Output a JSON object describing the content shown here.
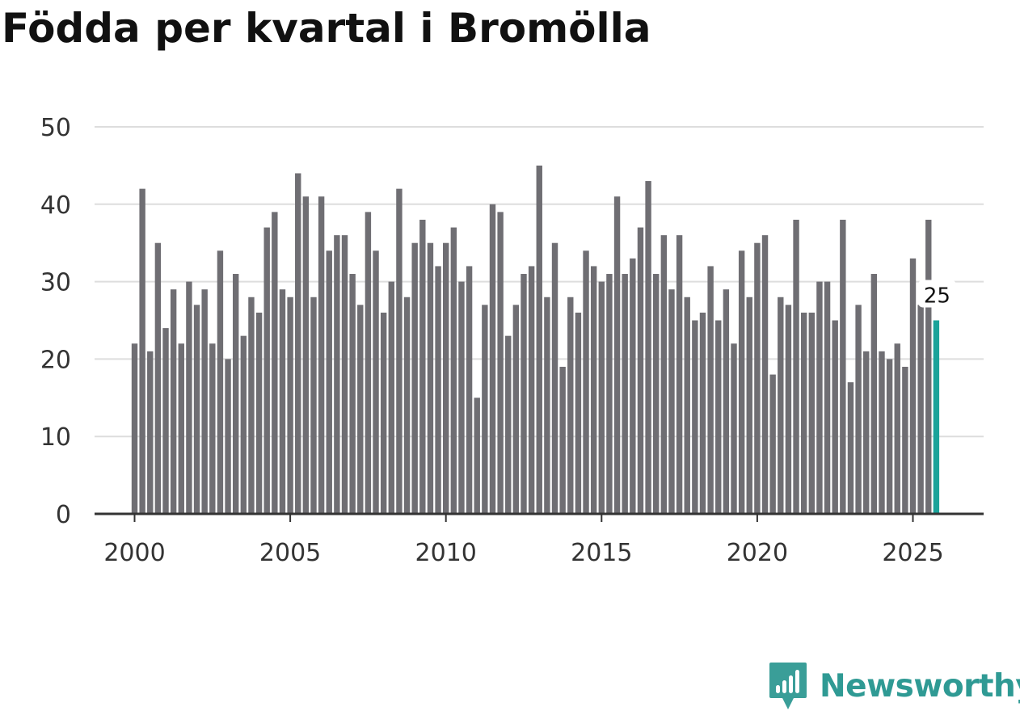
{
  "page": {
    "title": "Födda per kvartal i Bromölla",
    "brand": "Newsworthy",
    "colors": {
      "bar": "#6f6e73",
      "highlight": "#1aa39a",
      "grid": "#dddddd",
      "axis": "#333333",
      "brand": "#2f9a94"
    }
  },
  "chart_data": {
    "type": "bar",
    "title": "Födda per kvartal i Bromölla",
    "xlabel": "",
    "ylabel": "",
    "ylim": [
      0,
      50
    ],
    "yticks": [
      0,
      10,
      20,
      30,
      40,
      50
    ],
    "xticks": [
      2000,
      2005,
      2010,
      2015,
      2020,
      2025
    ],
    "start_year": 2000,
    "quarters_per_year": 4,
    "grid": true,
    "values": [
      22,
      42,
      21,
      35,
      24,
      29,
      22,
      30,
      27,
      29,
      22,
      34,
      20,
      31,
      23,
      28,
      26,
      37,
      39,
      29,
      28,
      44,
      41,
      28,
      41,
      34,
      36,
      36,
      31,
      27,
      39,
      34,
      26,
      30,
      42,
      28,
      35,
      38,
      35,
      32,
      35,
      37,
      30,
      32,
      15,
      27,
      40,
      39,
      23,
      27,
      31,
      32,
      45,
      28,
      35,
      19,
      28,
      26,
      34,
      32,
      30,
      31,
      41,
      31,
      33,
      37,
      43,
      31,
      36,
      29,
      36,
      28,
      25,
      26,
      32,
      25,
      29,
      22,
      34,
      28,
      35,
      36,
      18,
      28,
      27,
      38,
      26,
      26,
      30,
      30,
      25,
      38,
      17,
      27,
      21,
      31,
      21,
      20,
      22,
      19,
      33,
      27,
      38,
      25
    ],
    "highlight_last": true,
    "last_label": "25"
  }
}
